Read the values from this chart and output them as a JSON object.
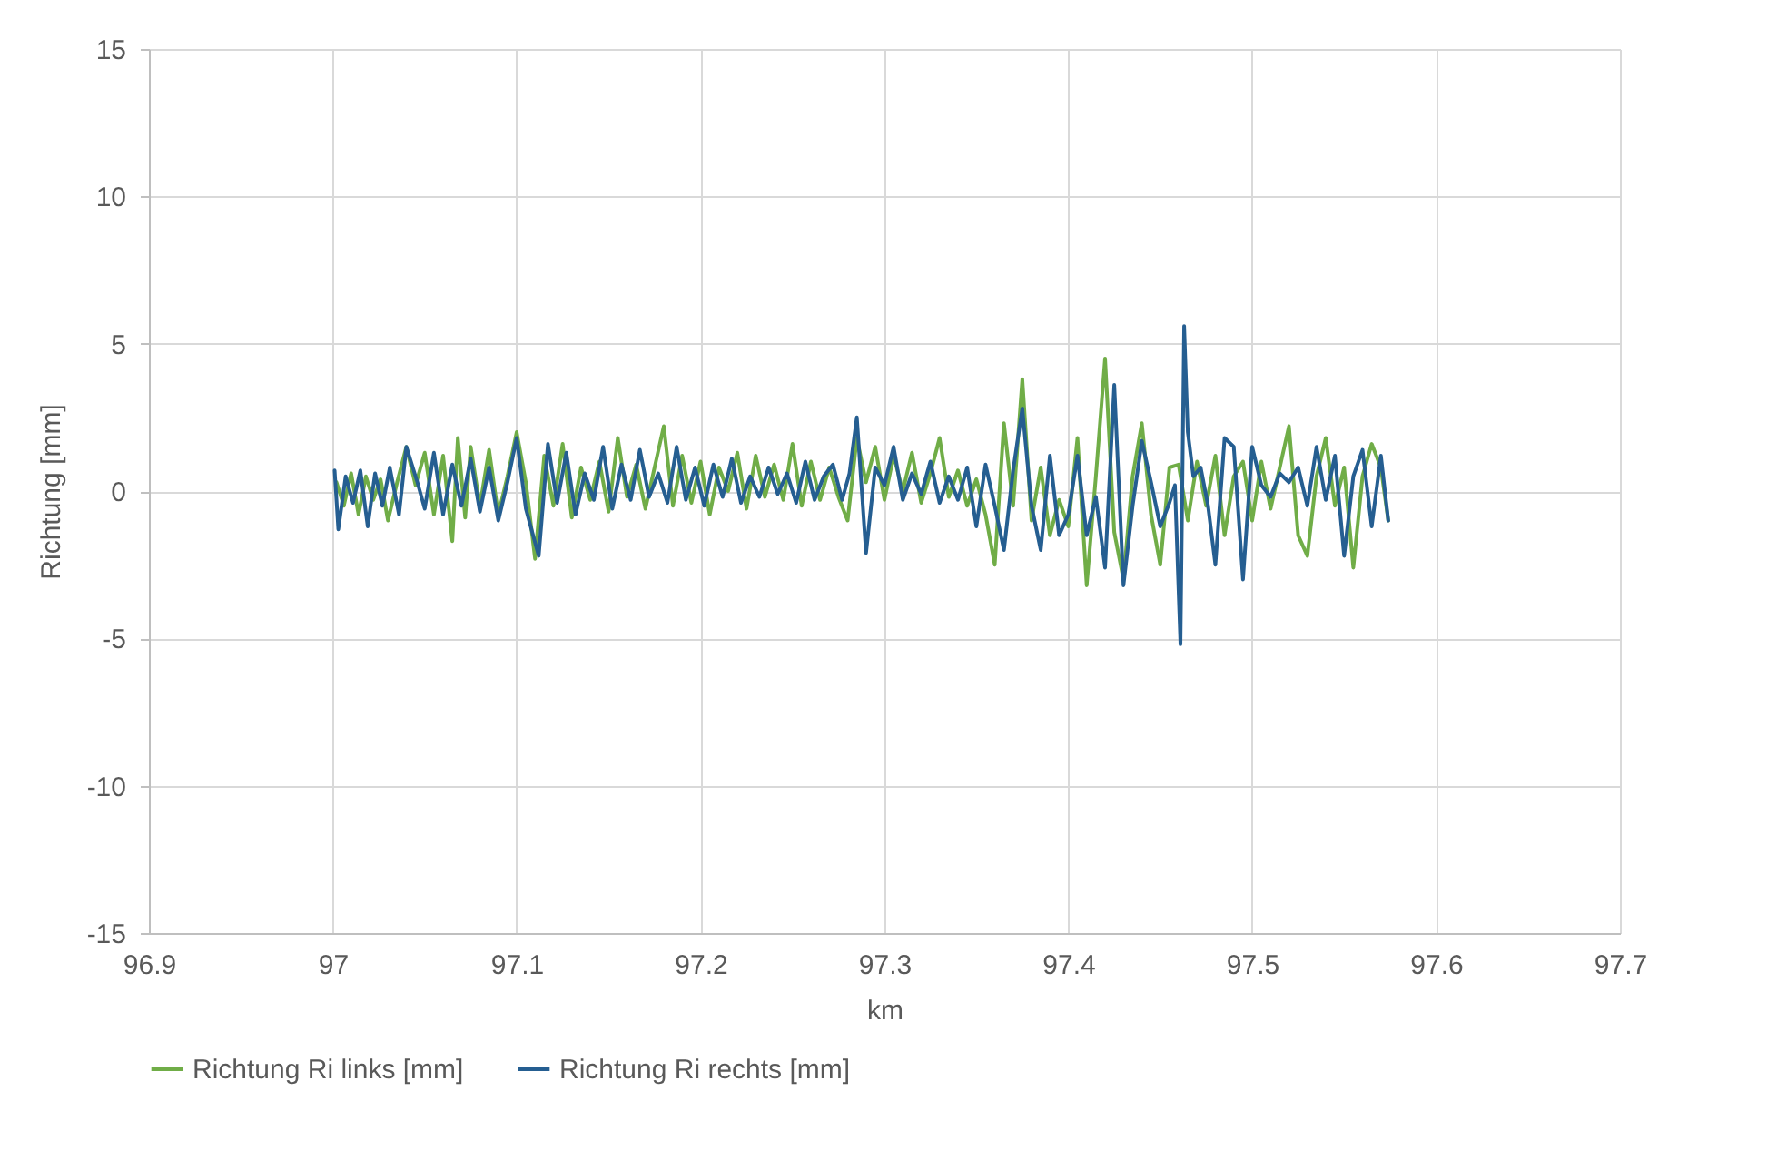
{
  "chart_data": {
    "type": "line",
    "xlabel": "km",
    "ylabel": "Richtung [mm]",
    "xlim": [
      96.9,
      97.7
    ],
    "xticks": [
      96.9,
      97,
      97.1,
      97.2,
      97.3,
      97.4,
      97.5,
      97.6,
      97.7
    ],
    "ylim": [
      -15,
      15
    ],
    "yticks": [
      -15,
      -10,
      -5,
      0,
      5,
      10,
      15
    ],
    "grid": true,
    "legend": "bottom",
    "marker": "none",
    "line_style": "solid",
    "series": [
      {
        "name": "Richtung Ri links [mm]",
        "color": "#70ad47",
        "x": [
          97.002,
          97.006,
          97.01,
          97.014,
          97.018,
          97.022,
          97.026,
          97.03,
          97.035,
          97.04,
          97.045,
          97.05,
          97.055,
          97.06,
          97.065,
          97.068,
          97.072,
          97.075,
          97.08,
          97.085,
          97.09,
          97.095,
          97.1,
          97.105,
          97.11,
          97.115,
          97.12,
          97.125,
          97.13,
          97.135,
          97.14,
          97.145,
          97.15,
          97.155,
          97.16,
          97.165,
          97.17,
          97.175,
          97.18,
          97.185,
          97.19,
          97.195,
          97.2,
          97.205,
          97.21,
          97.215,
          97.22,
          97.225,
          97.23,
          97.235,
          97.24,
          97.245,
          97.25,
          97.255,
          97.26,
          97.265,
          97.27,
          97.275,
          97.28,
          97.285,
          97.29,
          97.295,
          97.3,
          97.305,
          97.31,
          97.315,
          97.32,
          97.325,
          97.33,
          97.335,
          97.34,
          97.345,
          97.35,
          97.355,
          97.36,
          97.365,
          97.37,
          97.375,
          97.38,
          97.385,
          97.39,
          97.395,
          97.4,
          97.405,
          97.41,
          97.415,
          97.42,
          97.425,
          97.43,
          97.435,
          97.44,
          97.445,
          97.45,
          97.455,
          97.46,
          97.465,
          97.47,
          97.475,
          97.48,
          97.485,
          97.49,
          97.495,
          97.5,
          97.505,
          97.51,
          97.515,
          97.52,
          97.525,
          97.53,
          97.535,
          97.54,
          97.545,
          97.55,
          97.555,
          97.56,
          97.565,
          97.57,
          97.574
        ],
        "values": [
          0.3,
          -0.5,
          0.6,
          -0.8,
          0.5,
          -0.3,
          0.4,
          -1,
          0.3,
          1.5,
          0.2,
          1.3,
          -0.8,
          1.2,
          -1.7,
          1.8,
          -0.9,
          1.5,
          -0.5,
          1.4,
          -0.8,
          0.5,
          2,
          0.3,
          -2.3,
          1.2,
          -0.5,
          1.6,
          -0.9,
          0.8,
          -0.3,
          1,
          -0.7,
          1.8,
          -0.2,
          0.9,
          -0.6,
          0.8,
          2.2,
          -0.5,
          1.2,
          -0.4,
          1,
          -0.8,
          0.8,
          0,
          1.3,
          -0.6,
          1.2,
          -0.2,
          0.9,
          -0.3,
          1.6,
          -0.5,
          1,
          -0.3,
          0.8,
          -0.2,
          -1,
          1.8,
          0.3,
          1.5,
          -0.3,
          1.2,
          0,
          1.3,
          -0.4,
          0.6,
          1.8,
          -0.2,
          0.7,
          -0.5,
          0.4,
          -0.8,
          -2.5,
          2.3,
          -0.5,
          3.8,
          -1,
          0.8,
          -1.5,
          -0.3,
          -1.2,
          1.8,
          -3.2,
          0.5,
          4.5,
          -1.4,
          -3,
          0.5,
          2.3,
          -0.8,
          -2.5,
          0.8,
          0.9,
          -1,
          1,
          -0.5,
          1.2,
          -1.5,
          0.5,
          1,
          -1,
          1,
          -0.6,
          0.8,
          2.2,
          -1.5,
          -2.2,
          0.5,
          1.8,
          -0.5,
          0.8,
          -2.6,
          0.5,
          1.6,
          0.8,
          -1
        ]
      },
      {
        "name": "Richtung Ri rechts [mm]",
        "color": "#255e91",
        "x": [
          97.001,
          97.003,
          97.007,
          97.011,
          97.015,
          97.019,
          97.023,
          97.027,
          97.031,
          97.036,
          97.04,
          97.046,
          97.05,
          97.055,
          97.06,
          97.065,
          97.07,
          97.075,
          97.08,
          97.085,
          97.09,
          97.095,
          97.1,
          97.105,
          97.112,
          97.117,
          97.122,
          97.127,
          97.132,
          97.137,
          97.142,
          97.147,
          97.152,
          97.157,
          97.162,
          97.167,
          97.172,
          97.177,
          97.182,
          97.187,
          97.192,
          97.197,
          97.202,
          97.207,
          97.212,
          97.217,
          97.222,
          97.227,
          97.232,
          97.237,
          97.242,
          97.247,
          97.252,
          97.257,
          97.262,
          97.267,
          97.272,
          97.277,
          97.281,
          97.285,
          97.29,
          97.295,
          97.3,
          97.305,
          97.31,
          97.315,
          97.32,
          97.325,
          97.33,
          97.335,
          97.34,
          97.345,
          97.35,
          97.355,
          97.36,
          97.365,
          97.37,
          97.375,
          97.38,
          97.385,
          97.39,
          97.395,
          97.4,
          97.405,
          97.41,
          97.415,
          97.42,
          97.425,
          97.43,
          97.435,
          97.44,
          97.445,
          97.45,
          97.455,
          97.458,
          97.461,
          97.463,
          97.465,
          97.468,
          97.472,
          97.476,
          97.48,
          97.485,
          97.49,
          97.495,
          97.5,
          97.505,
          97.51,
          97.515,
          97.52,
          97.525,
          97.53,
          97.535,
          97.54,
          97.545,
          97.55,
          97.555,
          97.56,
          97.565,
          97.57,
          97.574
        ],
        "values": [
          0.7,
          -1.3,
          0.5,
          -0.4,
          0.7,
          -1.2,
          0.6,
          -0.5,
          0.8,
          -0.8,
          1.5,
          0.3,
          -0.6,
          1.3,
          -0.8,
          0.9,
          -0.5,
          1.1,
          -0.7,
          0.8,
          -1,
          0.3,
          1.8,
          -0.6,
          -2.2,
          1.6,
          -0.4,
          1.3,
          -0.8,
          0.6,
          -0.3,
          1.5,
          -0.6,
          0.9,
          -0.3,
          1.4,
          -0.2,
          0.6,
          -0.4,
          1.5,
          -0.3,
          0.8,
          -0.5,
          0.9,
          -0.2,
          1.1,
          -0.4,
          0.5,
          -0.2,
          0.8,
          -0.1,
          0.6,
          -0.4,
          1,
          -0.3,
          0.5,
          0.9,
          -0.3,
          0.6,
          2.5,
          -2.1,
          0.8,
          0.2,
          1.5,
          -0.3,
          0.6,
          -0.1,
          1,
          -0.4,
          0.5,
          -0.3,
          0.8,
          -1.2,
          0.9,
          -0.5,
          -2,
          0.7,
          2.8,
          -0.5,
          -2,
          1.2,
          -1.5,
          -0.8,
          1.2,
          -1.5,
          -0.2,
          -2.6,
          3.6,
          -3.2,
          -0.5,
          1.7,
          0.3,
          -1.2,
          -0.4,
          0.2,
          -5.2,
          5.6,
          2,
          0.5,
          0.8,
          -0.5,
          -2.5,
          1.8,
          1.5,
          -3,
          1.5,
          0.2,
          -0.2,
          0.6,
          0.3,
          0.8,
          -0.5,
          1.5,
          -0.3,
          1.2,
          -2.2,
          0.5,
          1.4,
          -1.2,
          1.2,
          -1
        ]
      }
    ]
  }
}
